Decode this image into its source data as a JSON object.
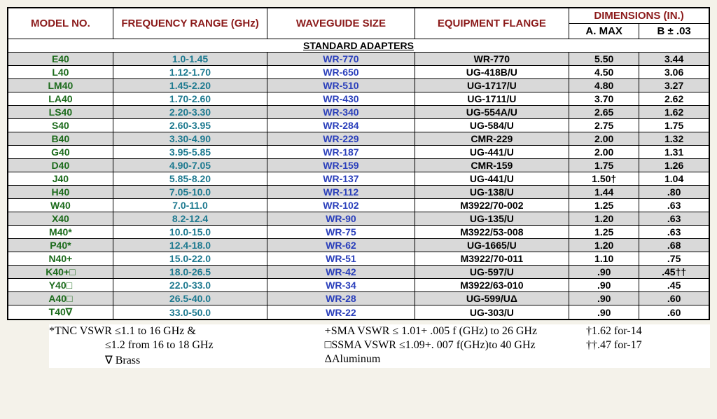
{
  "headers": {
    "model": "MODEL NO.",
    "freq": "FREQUENCY RANGE (GHz)",
    "wg": "WAVEGUIDE SIZE",
    "flange": "EQUIPMENT FLANGE",
    "dims": "DIMENSIONS (IN.)",
    "amax": "A. MAX",
    "bpm": "B ± .03"
  },
  "section": "STANDARD ADAPTERS",
  "colors": {
    "header_red": "#8b1a1a",
    "gray": "#d9d9d9",
    "white": "#ffffff",
    "model": "#1c6b1c",
    "freq": "#1e7a90",
    "wg": "#2a3fbb"
  },
  "col_widths_pct": [
    15,
    22,
    21,
    22,
    10,
    10
  ],
  "rows": [
    {
      "model": "E40",
      "freq": "1.0-1.45",
      "wg": "WR-770",
      "flange": "WR-770",
      "a": "5.50",
      "b": "3.44"
    },
    {
      "model": "L40",
      "freq": "1.12-1.70",
      "wg": "WR-650",
      "flange": "UG-418B/U",
      "a": "4.50",
      "b": "3.06"
    },
    {
      "model": "LM40",
      "freq": "1.45-2.20",
      "wg": "WR-510",
      "flange": "UG-1717/U",
      "a": "4.80",
      "b": "3.27"
    },
    {
      "model": "LA40",
      "freq": "1.70-2.60",
      "wg": "WR-430",
      "flange": "UG-1711/U",
      "a": "3.70",
      "b": "2.62"
    },
    {
      "model": "LS40",
      "freq": "2.20-3.30",
      "wg": "WR-340",
      "flange": "UG-554A/U",
      "a": "2.65",
      "b": "1.62"
    },
    {
      "model": "S40",
      "freq": "2.60-3.95",
      "wg": "WR-284",
      "flange": "UG-584/U",
      "a": "2.75",
      "b": "1.75"
    },
    {
      "model": "B40",
      "freq": "3.30-4.90",
      "wg": "WR-229",
      "flange": "CMR-229",
      "a": "2.00",
      "b": "1.32"
    },
    {
      "model": "G40",
      "freq": "3.95-5.85",
      "wg": "WR-187",
      "flange": "UG-441/U",
      "a": "2.00",
      "b": "1.31"
    },
    {
      "model": "D40",
      "freq": "4.90-7.05",
      "wg": "WR-159",
      "flange": "CMR-159",
      "a": "1.75",
      "b": "1.26"
    },
    {
      "model": "J40",
      "freq": "5.85-8.20",
      "wg": "WR-137",
      "flange": "UG-441/U",
      "a": "1.50†",
      "b": "1.04"
    },
    {
      "model": "H40",
      "freq": "7.05-10.0",
      "wg": "WR-112",
      "flange": "UG-138/U",
      "a": "1.44",
      "b": ".80"
    },
    {
      "model": "W40",
      "freq": "7.0-11.0",
      "wg": "WR-102",
      "flange": "M3922/70-002",
      "a": "1.25",
      "b": ".63"
    },
    {
      "model": "X40",
      "freq": "8.2-12.4",
      "wg": "WR-90",
      "flange": "UG-135/U",
      "a": "1.20",
      "b": ".63"
    },
    {
      "model": "M40*",
      "freq": "10.0-15.0",
      "wg": "WR-75",
      "flange": "M3922/53-008",
      "a": "1.25",
      "b": ".63"
    },
    {
      "model": "P40*",
      "freq": "12.4-18.0",
      "wg": "WR-62",
      "flange": "UG-1665/U",
      "a": "1.20",
      "b": ".68"
    },
    {
      "model": "N40+",
      "freq": "15.0-22.0",
      "wg": "WR-51",
      "flange": "M3922/70-011",
      "a": "1.10",
      "b": ".75"
    },
    {
      "model": "K40+□",
      "freq": "18.0-26.5",
      "wg": "WR-42",
      "flange": "UG-597/U",
      "a": ".90",
      "b": ".45††"
    },
    {
      "model": "Y40□",
      "freq": "22.0-33.0",
      "wg": "WR-34",
      "flange": "M3922/63-010",
      "a": ".90",
      "b": ".45"
    },
    {
      "model": "A40□",
      "freq": "26.5-40.0",
      "wg": "WR-28",
      "flange": "UG-599/UΔ",
      "a": ".90",
      "b": ".60"
    },
    {
      "model": "T40∇",
      "freq": "33.0-50.0",
      "wg": "WR-22",
      "flange": "UG-303/U",
      "a": ".90",
      "b": ".60"
    }
  ],
  "footnotes": {
    "a1": "*TNC VSWR ≤1.1 to 16 GHz &",
    "a2": "≤1.2 from 16 to 18 GHz",
    "a3": "∇ Brass",
    "b1": "+SMA VSWR ≤ 1.01+ .005 f (GHz) to 26 GHz",
    "b2": "□SSMA VSWR ≤1.09+. 007 f(GHz)to 40 GHz",
    "b3": "ΔAluminum",
    "c1": "†1.62 for-14",
    "c2": "††.47 for-17"
  }
}
